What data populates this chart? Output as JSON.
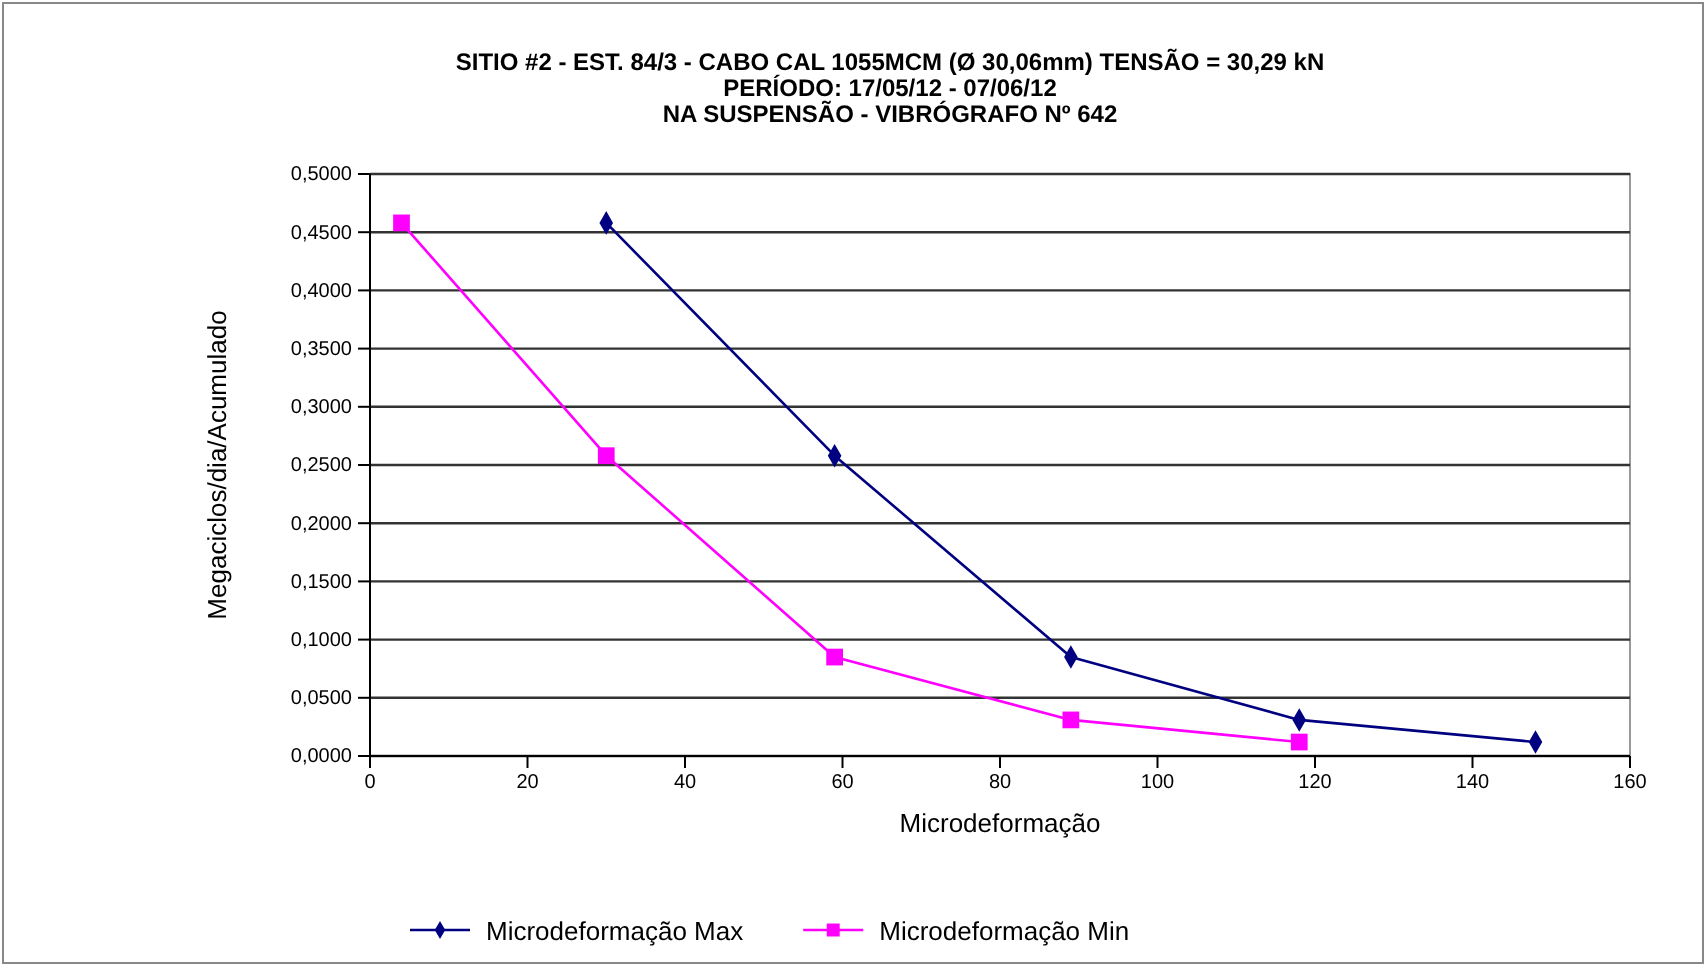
{
  "chart_data": {
    "type": "line",
    "title": "SITIO #2 - EST. 84/3 -  CABO CAL  1055MCM (Ø 30,06mm) TENSÃO = 30,29 kN",
    "subtitle": "PERÍODO: 17/05/12 - 07/06/12\nNA SUSPENSÃO - VIBRÓGRAFO Nº 642",
    "xlabel": "Microdeformação",
    "ylabel": "Megaciclos/dia/Acumulado",
    "series": [
      {
        "name": "Microdeformação Max",
        "color": "#000080",
        "marker": "diamond",
        "x": [
          30,
          59,
          89,
          118,
          148
        ],
        "values": [
          0.458,
          0.258,
          0.085,
          0.031,
          0.012
        ]
      },
      {
        "name": "Microdeformação Min",
        "color": "#ff00ff",
        "marker": "square",
        "x": [
          4,
          30,
          59,
          89,
          118
        ],
        "values": [
          0.458,
          0.258,
          0.085,
          0.031,
          0.012
        ]
      }
    ],
    "xlim": [
      0,
      160
    ],
    "xticks": [
      0,
      20,
      40,
      60,
      80,
      100,
      120,
      140,
      160
    ],
    "ylim": [
      0,
      0.5
    ],
    "yticks": [
      {
        "value": 0,
        "label": "0,0000"
      },
      {
        "value": 0.05,
        "label": "0,0500"
      },
      {
        "value": 0.1,
        "label": "0,1000"
      },
      {
        "value": 0.15,
        "label": "0,1500"
      },
      {
        "value": 0.2,
        "label": "0,2000"
      },
      {
        "value": 0.25,
        "label": "0,2500"
      },
      {
        "value": 0.3,
        "label": "0,3000"
      },
      {
        "value": 0.35,
        "label": "0,3500"
      },
      {
        "value": 0.4,
        "label": "0,4000"
      },
      {
        "value": 0.45,
        "label": "0,4500"
      },
      {
        "value": 0.5,
        "label": "0,5000"
      }
    ],
    "grid": "y",
    "legend": "bottom"
  }
}
